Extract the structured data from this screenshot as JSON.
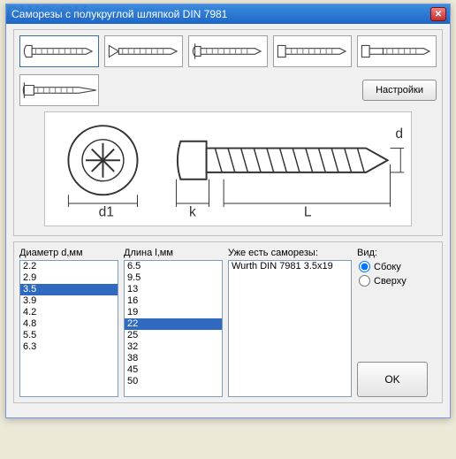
{
  "window": {
    "title": "Саморезы с полукруглой шляпкой DIN 7981"
  },
  "buttons": {
    "settings": "Настройки",
    "ok": "OK"
  },
  "labels": {
    "diameter": "Диаметр d,мм",
    "length": "Длина l,мм",
    "existing": "Уже есть саморезы:",
    "view": "Вид:",
    "side": "Сбоку",
    "top": "Сверху"
  },
  "lists": {
    "diameter": [
      "2.2",
      "2.9",
      "3.5",
      "3.9",
      "4.2",
      "4.8",
      "5.5",
      "6.3"
    ],
    "diameter_selected": "3.5",
    "length": [
      "6.5",
      "9.5",
      "13",
      "16",
      "19",
      "22",
      "25",
      "32",
      "38",
      "45",
      "50"
    ],
    "length_selected": "22",
    "existing": [
      "Wurth DIN 7981 3.5x19"
    ]
  },
  "view_selected": "side",
  "diagram_labels": {
    "d": "d",
    "d1": "d1",
    "k": "k",
    "L": "L"
  },
  "colors": {
    "selection": "#2f6ac0",
    "window_bg": "#f0f0f0",
    "border": "#7f9db9",
    "titlebar_top": "#3c8cde",
    "titlebar_bottom": "#1e66c7"
  }
}
